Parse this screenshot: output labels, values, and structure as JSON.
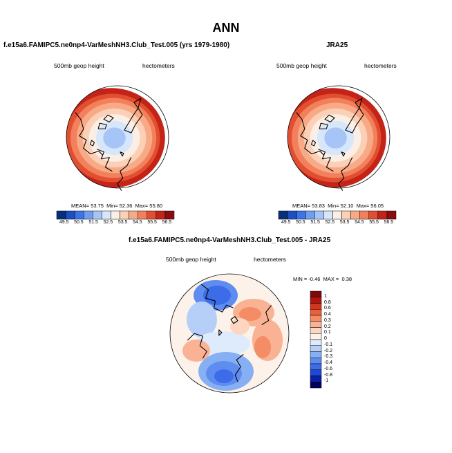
{
  "figure": {
    "title": "ANN",
    "colors": {
      "abs_scale": [
        "#08307a",
        "#1c4fc4",
        "#3a74e6",
        "#6f9df0",
        "#a6c5f6",
        "#d6e6fb",
        "#fbeee4",
        "#fbd0b6",
        "#f8aa86",
        "#f2805c",
        "#e24e30",
        "#c42318",
        "#8a0d0d"
      ],
      "diff_scale": [
        "#03035f",
        "#0b1fa6",
        "#1f47d6",
        "#3d6ce8",
        "#5e8cef",
        "#86aff4",
        "#b5cff8",
        "#deebfc",
        "#fdf2ea",
        "#fcd6c1",
        "#f9b394",
        "#f48c66",
        "#eb603c",
        "#d5341f",
        "#b0160f",
        "#7d0a0a"
      ],
      "coast": "#000000"
    }
  },
  "chart_data": [
    {
      "type": "heatmap",
      "projection": "north-polar-stereographic",
      "title": "f.e15a6.FAMIPC5.ne0np4-VarMeshNH3.Club_Test.005 (yrs 1979-1980)",
      "left_label": "500mb geop height",
      "right_label": "hectometers",
      "stats": {
        "mean_label": "MEAN=",
        "mean": "53.75",
        "min_label": "Min=",
        "min": "52.36",
        "max_label": "Max=",
        "max": "55.80"
      },
      "colorbar": {
        "orientation": "horizontal",
        "ticks": [
          "49.5",
          "50.5",
          "51.5",
          "52.5",
          "53.5",
          "54.5",
          "55.5",
          "56.5"
        ],
        "levels": [
          49.5,
          50,
          50.5,
          51,
          51.5,
          52,
          52.5,
          53,
          53.5,
          54,
          54.5,
          55,
          55.5,
          56,
          56.5
        ]
      },
      "field_summary": {
        "pole": 52.4,
        "edge": 55.8
      }
    },
    {
      "type": "heatmap",
      "projection": "north-polar-stereographic",
      "title": "JRA25",
      "left_label": "500mb geop height",
      "right_label": "hectometers",
      "stats": {
        "mean_label": "MEAN=",
        "mean": "53.83",
        "min_label": "Min=",
        "min": "52.10",
        "max_label": "Max=",
        "max": "56.05"
      },
      "colorbar": {
        "orientation": "horizontal",
        "ticks": [
          "49.5",
          "50.5",
          "51.5",
          "52.5",
          "53.5",
          "54.5",
          "55.5",
          "56.5"
        ],
        "levels": [
          49.5,
          50,
          50.5,
          51,
          51.5,
          52,
          52.5,
          53,
          53.5,
          54,
          54.5,
          55,
          55.5,
          56,
          56.5
        ]
      },
      "field_summary": {
        "pole": 52.1,
        "edge": 56.05
      }
    },
    {
      "type": "heatmap",
      "projection": "north-polar-stereographic",
      "title": "f.e15a6.FAMIPC5.ne0np4-VarMeshNH3.Club_Test.005 - JRA25",
      "left_label": "500mb geop height",
      "right_label": "hectometers",
      "stats": {
        "min_label": "MIN =",
        "min": "-0.46",
        "max_label": "MAX =",
        "max": "0.38"
      },
      "colorbar": {
        "orientation": "vertical",
        "ticks": [
          "1",
          "0.8",
          "0.6",
          "0.4",
          "0.3",
          "0.2",
          "0.1",
          "0",
          "-0.1",
          "-0.2",
          "-0.3",
          "-0.4",
          "-0.6",
          "-0.8",
          "-1"
        ]
      },
      "field_summary": {
        "min": -0.46,
        "max": 0.38
      }
    }
  ]
}
